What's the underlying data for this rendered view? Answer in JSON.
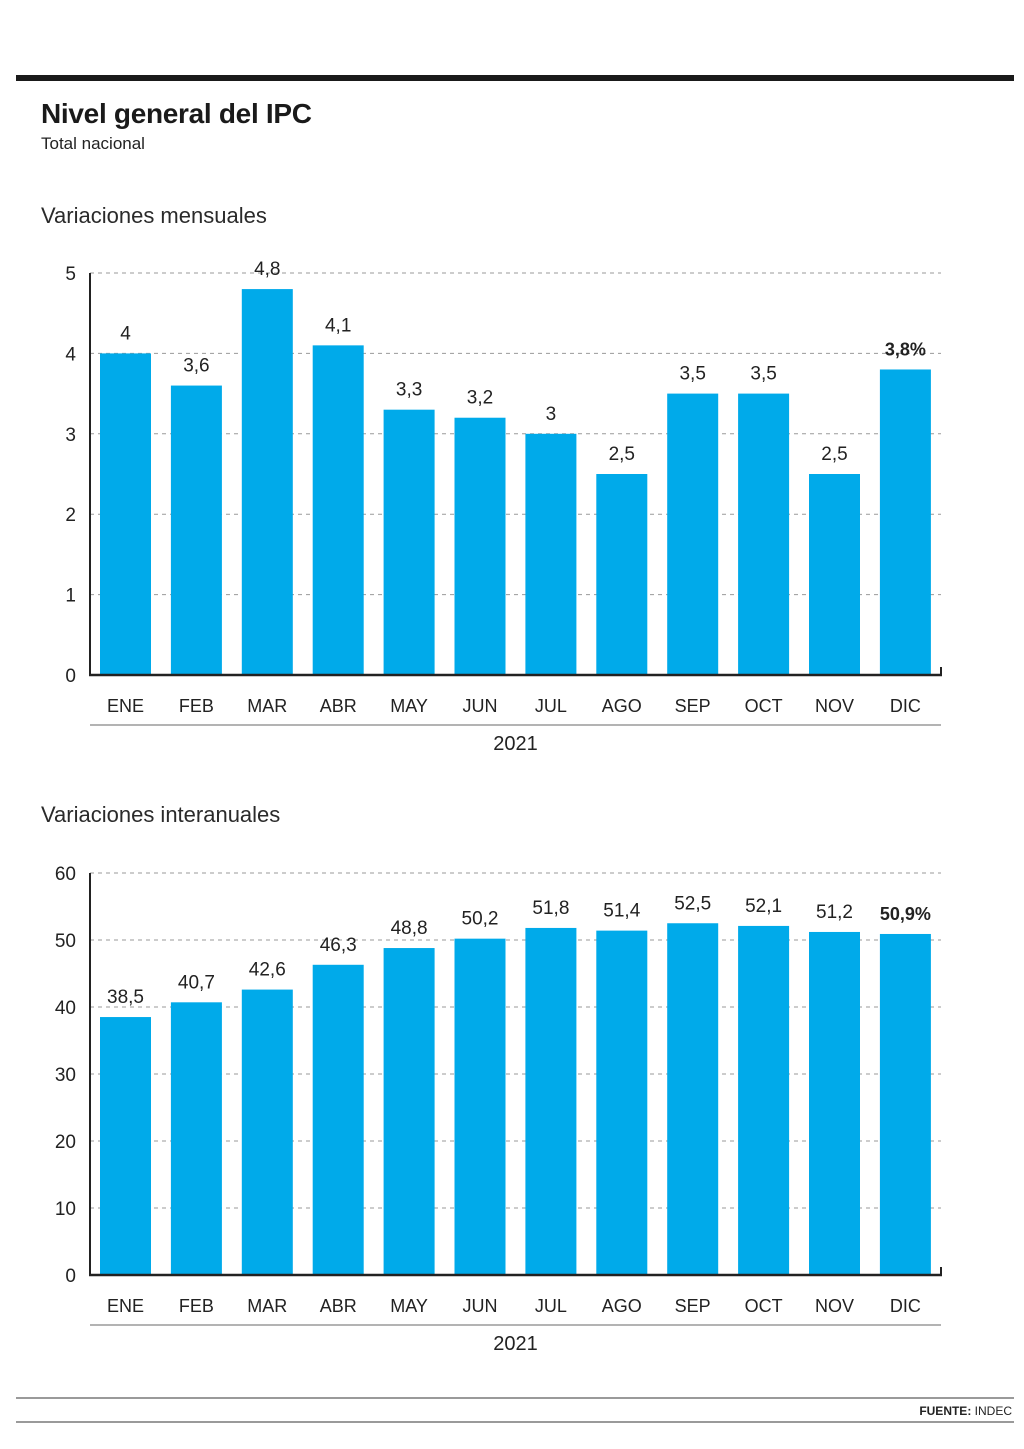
{
  "header": {
    "title": "Nivel general del IPC",
    "subtitle": "Total nacional"
  },
  "footer": {
    "source_label": "FUENTE:",
    "source_value": "INDEC"
  },
  "colors": {
    "bar": "#00aaea",
    "text": "#222222",
    "grid": "#9a9a9a",
    "axis": "#222222"
  },
  "chart_data": [
    {
      "type": "bar",
      "title": "Variaciones mensuales",
      "categories": [
        "ENE",
        "FEB",
        "MAR",
        "ABR",
        "MAY",
        "JUN",
        "JUL",
        "AGO",
        "SEP",
        "OCT",
        "NOV",
        "DIC"
      ],
      "values": [
        4,
        3.6,
        4.8,
        4.1,
        3.3,
        3.2,
        3,
        2.5,
        3.5,
        3.5,
        2.5,
        3.8
      ],
      "value_labels": [
        "4",
        "3,6",
        "4,8",
        "4,1",
        "3,3",
        "3,2",
        "3",
        "2,5",
        "3,5",
        "3,5",
        "2,5",
        "3,8%"
      ],
      "highlight_last": true,
      "yticks": [
        "0",
        "1",
        "2",
        "3",
        "4",
        "5"
      ],
      "ylim": [
        0,
        5
      ],
      "xlabel": "2021",
      "ylabel": "",
      "grid": true
    },
    {
      "type": "bar",
      "title": "Variaciones interanuales",
      "categories": [
        "ENE",
        "FEB",
        "MAR",
        "ABR",
        "MAY",
        "JUN",
        "JUL",
        "AGO",
        "SEP",
        "OCT",
        "NOV",
        "DIC"
      ],
      "values": [
        38.5,
        40.7,
        42.6,
        46.3,
        48.8,
        50.2,
        51.8,
        51.4,
        52.5,
        52.1,
        51.2,
        50.9
      ],
      "value_labels": [
        "38,5",
        "40,7",
        "42,6",
        "46,3",
        "48,8",
        "50,2",
        "51,8",
        "51,4",
        "52,5",
        "52,1",
        "51,2",
        "50,9%"
      ],
      "highlight_last": true,
      "yticks": [
        "0",
        "10",
        "20",
        "30",
        "40",
        "50",
        "60"
      ],
      "ylim": [
        0,
        60
      ],
      "xlabel": "2021",
      "ylabel": "",
      "grid": true
    }
  ]
}
